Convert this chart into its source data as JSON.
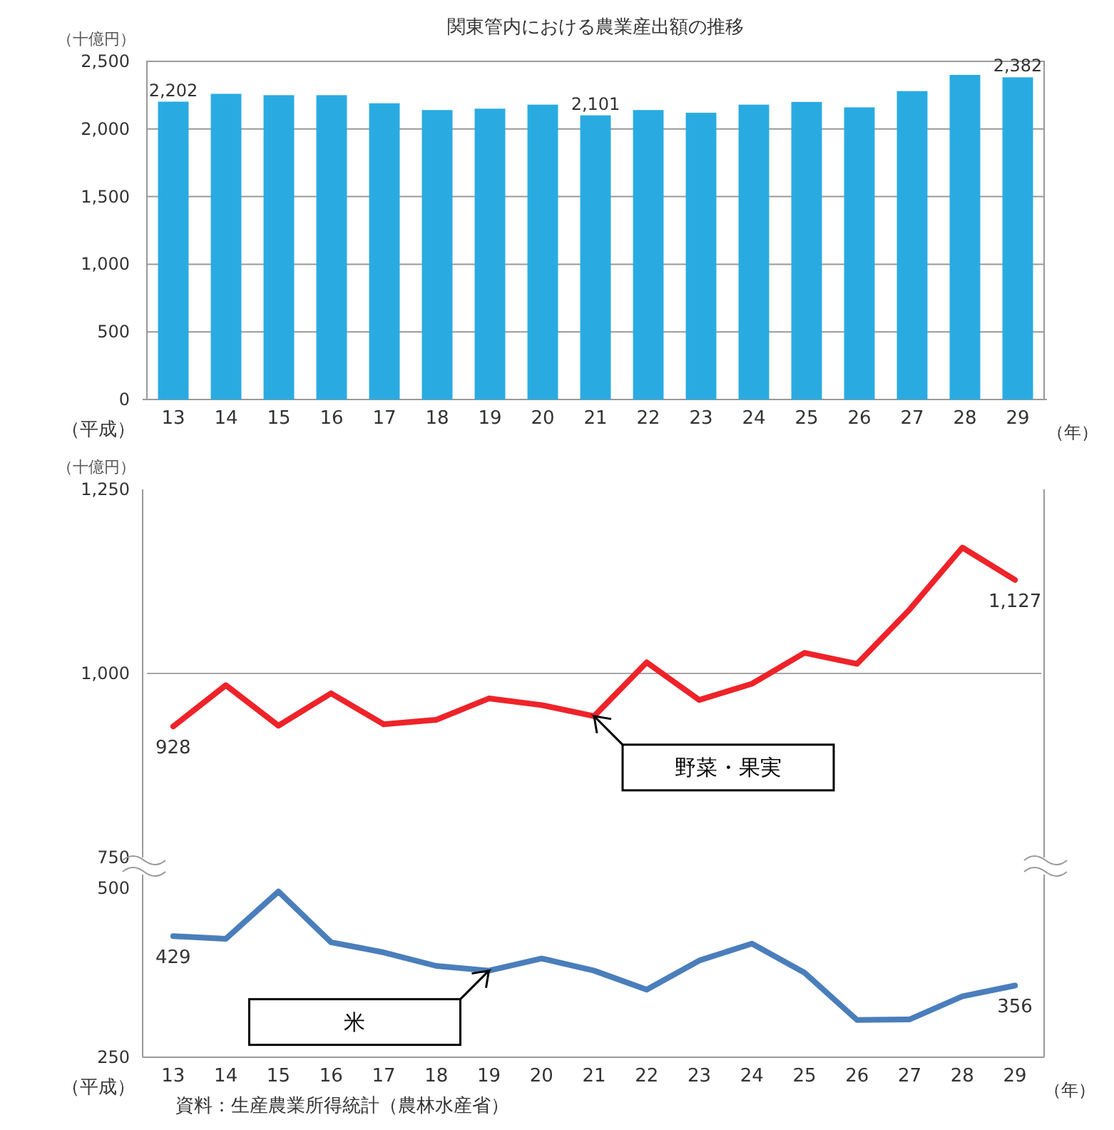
{
  "chart_data": [
    {
      "type": "bar",
      "title": "関東管内における農業産出額の推移",
      "ylabel": "（十億円）",
      "xlabel": "（年）",
      "annotations": [
        "（平成）"
      ],
      "categories": [
        "13",
        "14",
        "15",
        "16",
        "17",
        "18",
        "19",
        "20",
        "21",
        "22",
        "23",
        "24",
        "25",
        "26",
        "27",
        "28",
        "29"
      ],
      "values": [
        2202,
        2260,
        2250,
        2250,
        2190,
        2140,
        2150,
        2180,
        2101,
        2140,
        2120,
        2180,
        2200,
        2160,
        2280,
        2400,
        2382
      ],
      "value_labels": [
        "2,202",
        null,
        null,
        null,
        null,
        null,
        null,
        null,
        "2,101",
        null,
        null,
        null,
        null,
        null,
        null,
        null,
        "2,382"
      ],
      "color": "#29abe2",
      "ylim": [
        0,
        2500
      ],
      "yticks": [
        {
          "value": 0,
          "label": "0"
        },
        {
          "value": 500,
          "label": "500"
        },
        {
          "value": 1000,
          "label": "1,000"
        },
        {
          "value": 1500,
          "label": "1,500"
        },
        {
          "value": 2000,
          "label": "2,000"
        },
        {
          "value": 2500,
          "label": "2,500"
        }
      ],
      "grid": "y"
    },
    {
      "type": "line",
      "ylabel": "（十億円）",
      "tick_labels": "y",
      "categories": [
        null,
        null,
        null,
        null,
        null,
        null,
        null,
        null,
        null,
        null,
        null,
        null,
        null,
        null,
        null,
        null,
        null
      ],
      "series": [
        {
          "color": "#ee2329",
          "values": [
            928,
            984,
            929,
            973,
            931,
            937,
            966,
            957,
            942,
            1015,
            964,
            986,
            1028,
            1013,
            1087,
            1171,
            1127
          ],
          "value_labels": [
            "928",
            null,
            null,
            null,
            null,
            null,
            null,
            null,
            null,
            null,
            null,
            null,
            null,
            null,
            null,
            null,
            "1,127"
          ]
        }
      ],
      "annotations": [
        "野菜・果実"
      ],
      "ylim": [
        750,
        1250
      ],
      "yticks": [
        750,
        {
          "value": 1000,
          "label": "1,000"
        },
        {
          "value": 1250,
          "label": "1,250"
        }
      ],
      "ref_lines": [
        {
          "axis": "y",
          "value": 1000,
          "color": "#a6a6a6"
        }
      ]
    },
    {
      "type": "line",
      "xlabel": "（年）",
      "categories": [
        "13",
        "14",
        "15",
        "16",
        "17",
        "18",
        "19",
        "20",
        "21",
        "22",
        "23",
        "24",
        "25",
        "26",
        "27",
        "28",
        "29"
      ],
      "series": [
        {
          "color": "#4a7ebb",
          "values": [
            429,
            425,
            495,
            420,
            405,
            385,
            378,
            396,
            378,
            350,
            393,
            418,
            375,
            305,
            306,
            340,
            356
          ],
          "value_labels": [
            "429",
            null,
            null,
            null,
            null,
            null,
            null,
            null,
            null,
            null,
            null,
            null,
            null,
            null,
            null,
            null,
            "356"
          ]
        }
      ],
      "annotations": [
        "米",
        "（平成）",
        "資料：生産農業所得統計（農林水産省）"
      ],
      "ylim": [
        250,
        520
      ],
      "yticks": [
        250,
        500
      ]
    }
  ]
}
